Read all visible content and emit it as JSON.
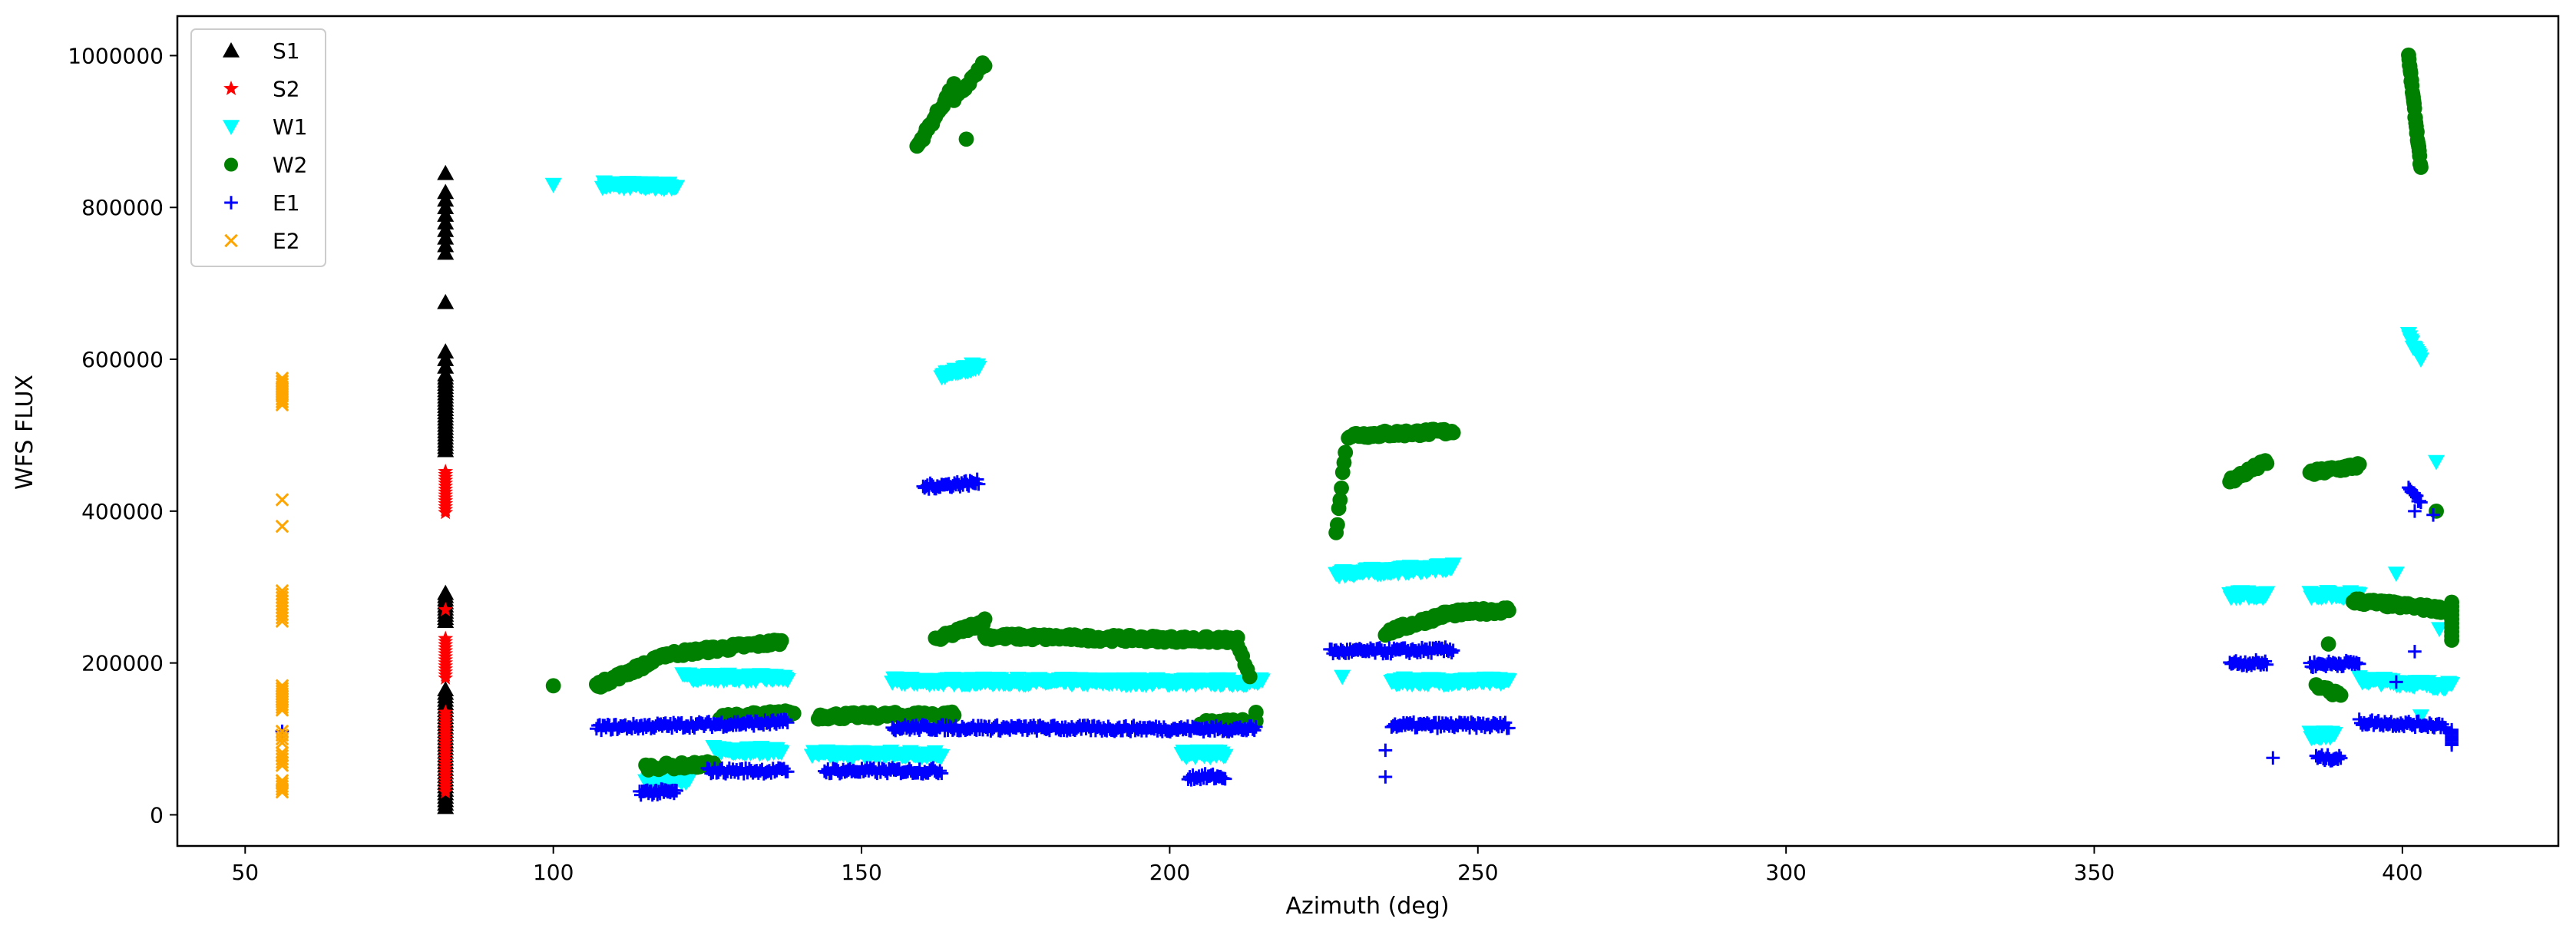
{
  "chart_data": {
    "type": "scatter",
    "title": "",
    "xlabel": "Azimuth (deg)",
    "ylabel": "WFS FLUX",
    "xlim": [
      39,
      425.3
    ],
    "ylim": [
      -41000,
      1052000
    ],
    "xticks": [
      50,
      100,
      150,
      200,
      250,
      300,
      350,
      400
    ],
    "yticks": [
      0,
      200000,
      400000,
      600000,
      800000,
      1000000
    ],
    "grid": false,
    "legend_position": "top-left",
    "run_format": "[x_start, x_end, y_start, y_end, n_points]",
    "series": [
      {
        "name": "S1",
        "marker": "triangle-up",
        "color": "#000000",
        "runs": [
          [
            82.5,
            82.5,
            845000,
            845000,
            1
          ],
          [
            82.5,
            82.5,
            820000,
            800000,
            3
          ],
          [
            82.5,
            82.5,
            790000,
            740000,
            6
          ],
          [
            82.5,
            82.5,
            675000,
            675000,
            1
          ],
          [
            82.5,
            82.5,
            610000,
            590000,
            3
          ],
          [
            82.5,
            82.5,
            580000,
            480000,
            25
          ],
          [
            82.5,
            82.5,
            292000,
            255000,
            10
          ],
          [
            82.5,
            82.5,
            165000,
            10000,
            35
          ]
        ]
      },
      {
        "name": "S2",
        "marker": "star",
        "color": "#ff0000",
        "runs": [
          [
            82.5,
            82.5,
            452000,
            398000,
            15
          ],
          [
            82.5,
            82.5,
            270000,
            270000,
            1
          ],
          [
            82.5,
            82.5,
            232000,
            180000,
            14
          ],
          [
            82.5,
            82.5,
            135000,
            30000,
            28
          ]
        ]
      },
      {
        "name": "W1",
        "marker": "triangle-down",
        "color": "#00ffff",
        "runs": [
          [
            100,
            100,
            830000,
            830000,
            1
          ],
          [
            108,
            120,
            830000,
            828000,
            60
          ],
          [
            163,
            169,
            578000,
            592000,
            35
          ],
          [
            121,
            138,
            182000,
            180000,
            70
          ],
          [
            155,
            215,
            176000,
            175000,
            240
          ],
          [
            126,
            137,
            86000,
            84000,
            45
          ],
          [
            142,
            163,
            80000,
            80000,
            80
          ],
          [
            115,
            122,
            45000,
            45000,
            30
          ],
          [
            202,
            209,
            80000,
            80000,
            30
          ],
          [
            227,
            246,
            318000,
            326000,
            80
          ],
          [
            228,
            228,
            182000,
            182000,
            1
          ],
          [
            236,
            255,
            176000,
            176000,
            75
          ],
          [
            372,
            378,
            290000,
            290000,
            30
          ],
          [
            385,
            393,
            290000,
            290000,
            35
          ],
          [
            385,
            389,
            105000,
            105000,
            18
          ],
          [
            389,
            389,
            160000,
            160000,
            1
          ],
          [
            393,
            408,
            178000,
            170000,
            60
          ],
          [
            401,
            403,
            630000,
            600000,
            12
          ],
          [
            405.5,
            405.5,
            465000,
            465000,
            1
          ],
          [
            399,
            399,
            318000,
            318000,
            1
          ],
          [
            403,
            403,
            130000,
            130000,
            1
          ],
          [
            406,
            406,
            245000,
            245000,
            1
          ]
        ]
      },
      {
        "name": "W2",
        "marker": "circle",
        "color": "#008000",
        "runs": [
          [
            100,
            100,
            170000,
            170000,
            1
          ],
          [
            107,
            117,
            170000,
            205000,
            45
          ],
          [
            117,
            137,
            210000,
            228000,
            70
          ],
          [
            115,
            125,
            63000,
            66000,
            25
          ],
          [
            126,
            126,
            68000,
            68000,
            1
          ],
          [
            127,
            139,
            128000,
            134000,
            45
          ],
          [
            143,
            165,
            130000,
            132000,
            70
          ],
          [
            159,
            165,
            880000,
            960000,
            25
          ],
          [
            165,
            170,
            940000,
            990000,
            15
          ],
          [
            167,
            167,
            890000,
            890000,
            1
          ],
          [
            162,
            170,
            230000,
            255000,
            30
          ],
          [
            170,
            211,
            235000,
            230000,
            150
          ],
          [
            211,
            213,
            220000,
            185000,
            6
          ],
          [
            205,
            214,
            120000,
            122000,
            30
          ],
          [
            214,
            214,
            135000,
            135000,
            1
          ],
          [
            227,
            228.5,
            370000,
            480000,
            8
          ],
          [
            229,
            246,
            500000,
            505000,
            70
          ],
          [
            235,
            245,
            240000,
            265000,
            40
          ],
          [
            245,
            255,
            265000,
            270000,
            40
          ],
          [
            372,
            378,
            440000,
            465000,
            25
          ],
          [
            385,
            393,
            450000,
            460000,
            35
          ],
          [
            388,
            388,
            225000,
            225000,
            1
          ],
          [
            386,
            390,
            168000,
            158000,
            10
          ],
          [
            392,
            407,
            282000,
            270000,
            60
          ],
          [
            401,
            403,
            1000000,
            850000,
            30
          ],
          [
            405.5,
            405.5,
            400000,
            400000,
            1
          ],
          [
            408,
            408,
            280000,
            230000,
            10
          ]
        ]
      },
      {
        "name": "E1",
        "marker": "plus",
        "color": "#0000ff",
        "runs": [
          [
            56,
            56,
            110000,
            110000,
            1
          ],
          [
            107,
            138,
            115000,
            122000,
            120
          ],
          [
            114,
            120,
            30000,
            30000,
            30
          ],
          [
            125,
            138,
            58000,
            58000,
            45
          ],
          [
            144,
            163,
            58000,
            58000,
            70
          ],
          [
            155,
            214,
            115000,
            113000,
            230
          ],
          [
            160,
            169,
            432000,
            438000,
            40
          ],
          [
            203,
            209,
            50000,
            50000,
            25
          ],
          [
            226,
            246,
            215000,
            217000,
            80
          ],
          [
            235,
            235,
            85000,
            85000,
            1
          ],
          [
            235,
            235,
            50000,
            50000,
            1
          ],
          [
            236,
            255,
            118000,
            118000,
            70
          ],
          [
            372,
            378,
            200000,
            200000,
            25
          ],
          [
            379,
            379,
            75000,
            75000,
            1
          ],
          [
            385,
            393,
            198000,
            200000,
            35
          ],
          [
            386,
            390,
            75000,
            75000,
            18
          ],
          [
            393,
            407,
            122000,
            118000,
            55
          ],
          [
            401,
            403,
            430000,
            410000,
            10
          ],
          [
            402,
            402,
            400000,
            400000,
            1
          ],
          [
            402,
            402,
            215000,
            215000,
            1
          ],
          [
            405,
            405,
            395000,
            395000,
            1
          ],
          [
            399,
            399,
            175000,
            175000,
            1
          ],
          [
            408,
            408,
            112000,
            92000,
            8
          ]
        ]
      },
      {
        "name": "E2",
        "marker": "x",
        "color": "#ffa500",
        "runs": [
          [
            56,
            56,
            575000,
            540000,
            10
          ],
          [
            56,
            56,
            415000,
            415000,
            1
          ],
          [
            56,
            56,
            380000,
            380000,
            1
          ],
          [
            56,
            56,
            295000,
            255000,
            10
          ],
          [
            56,
            56,
            170000,
            138000,
            10
          ],
          [
            56,
            56,
            110000,
            95000,
            4
          ],
          [
            56,
            56,
            82000,
            65000,
            5
          ],
          [
            56,
            56,
            45000,
            30000,
            5
          ]
        ]
      }
    ]
  }
}
